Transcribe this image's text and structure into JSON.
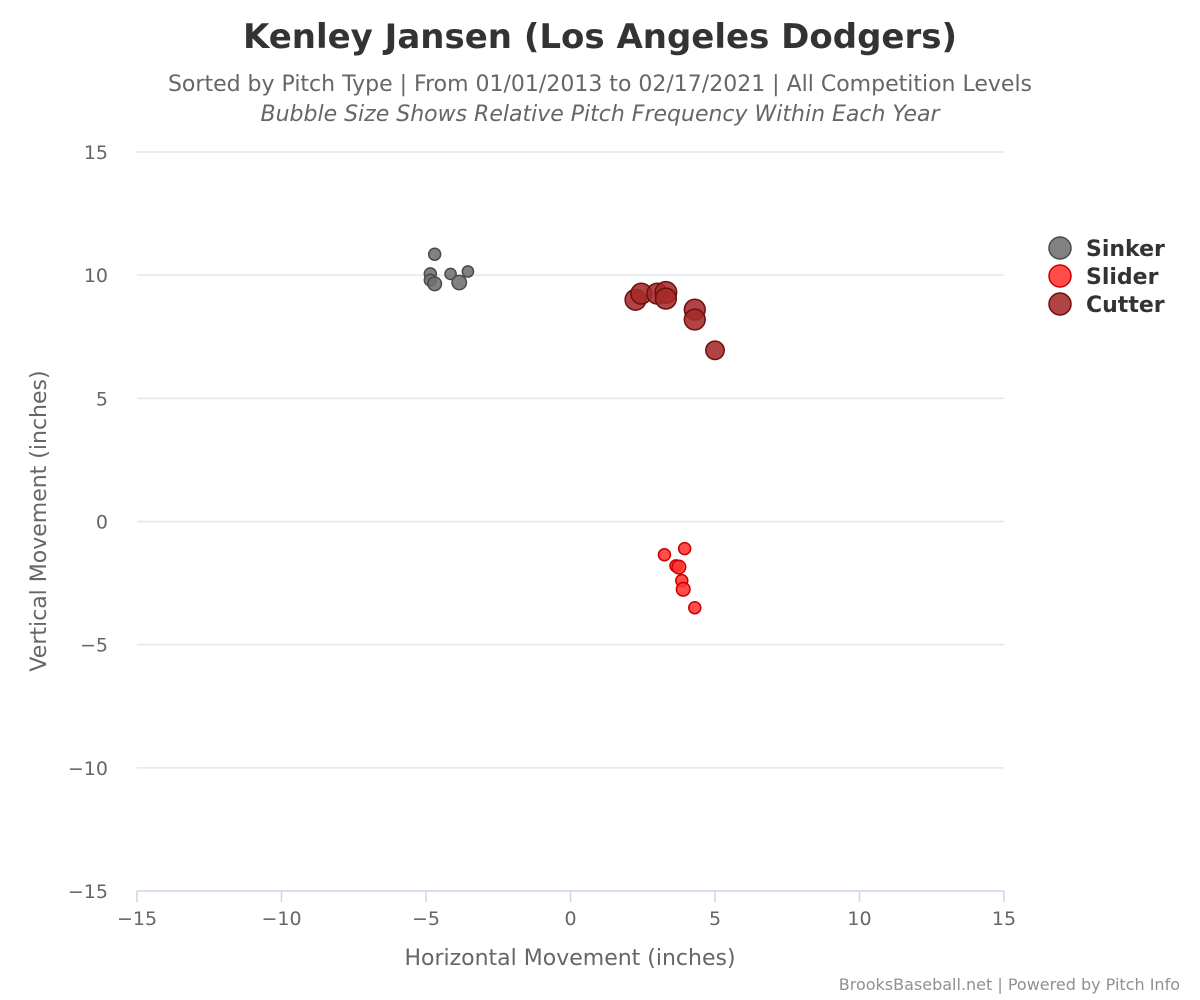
{
  "chart_data": {
    "type": "scatter",
    "title": "Kenley Jansen (Los Angeles Dodgers)",
    "subtitle": "Sorted by Pitch Type | From 01/01/2013 to 02/17/2021 | All Competition Levels",
    "subtitle2": "Bubble Size Shows Relative Pitch Frequency Within Each Year",
    "xlabel": "Horizontal Movement (inches)",
    "ylabel": "Vertical Movement (inches)",
    "xlim": [
      -15,
      15
    ],
    "ylim": [
      -15,
      15
    ],
    "xticks": [
      -15,
      -10,
      -5,
      0,
      5,
      10,
      15
    ],
    "yticks": [
      -15,
      -10,
      -5,
      0,
      5,
      10,
      15
    ],
    "xtick_labels": [
      "−15",
      "−10",
      "−5",
      "0",
      "5",
      "10",
      "15"
    ],
    "ytick_labels": [
      "−15",
      "−10",
      "−5",
      "0",
      "5",
      "10",
      "15"
    ],
    "grid": true,
    "legend_position": "right",
    "credits": "BrooksBaseball.net | Powered by Pitch Info",
    "series": [
      {
        "name": "Sinker",
        "color": "#707070",
        "stroke": "#4a4a4a",
        "points": [
          {
            "x": -4.7,
            "y": 10.85,
            "size": 0.25
          },
          {
            "x": -4.85,
            "y": 10.05,
            "size": 0.25
          },
          {
            "x": -4.85,
            "y": 9.8,
            "size": 0.25
          },
          {
            "x": -4.7,
            "y": 9.65,
            "size": 0.35
          },
          {
            "x": -4.15,
            "y": 10.05,
            "size": 0.2
          },
          {
            "x": -3.85,
            "y": 9.7,
            "size": 0.4
          },
          {
            "x": -3.55,
            "y": 10.15,
            "size": 0.2
          }
        ]
      },
      {
        "name": "Slider",
        "color": "#ff3333",
        "stroke": "#cc0000",
        "points": [
          {
            "x": 3.95,
            "y": -1.1,
            "size": 0.25
          },
          {
            "x": 3.25,
            "y": -1.35,
            "size": 0.25
          },
          {
            "x": 3.65,
            "y": -1.8,
            "size": 0.25
          },
          {
            "x": 3.75,
            "y": -1.85,
            "size": 0.35
          },
          {
            "x": 3.85,
            "y": -2.4,
            "size": 0.25
          },
          {
            "x": 3.9,
            "y": -2.75,
            "size": 0.35
          },
          {
            "x": 4.3,
            "y": -3.5,
            "size": 0.25
          }
        ]
      },
      {
        "name": "Cutter",
        "color": "#a52a2a",
        "stroke": "#6b0f0f",
        "points": [
          {
            "x": 2.25,
            "y": 9.0,
            "size": 0.8
          },
          {
            "x": 2.45,
            "y": 9.25,
            "size": 0.8
          },
          {
            "x": 3.0,
            "y": 9.25,
            "size": 0.8
          },
          {
            "x": 3.3,
            "y": 9.3,
            "size": 0.85
          },
          {
            "x": 3.3,
            "y": 9.05,
            "size": 0.8
          },
          {
            "x": 4.3,
            "y": 8.6,
            "size": 0.8
          },
          {
            "x": 4.3,
            "y": 8.2,
            "size": 0.8
          },
          {
            "x": 5.0,
            "y": 6.95,
            "size": 0.65
          }
        ]
      }
    ]
  }
}
